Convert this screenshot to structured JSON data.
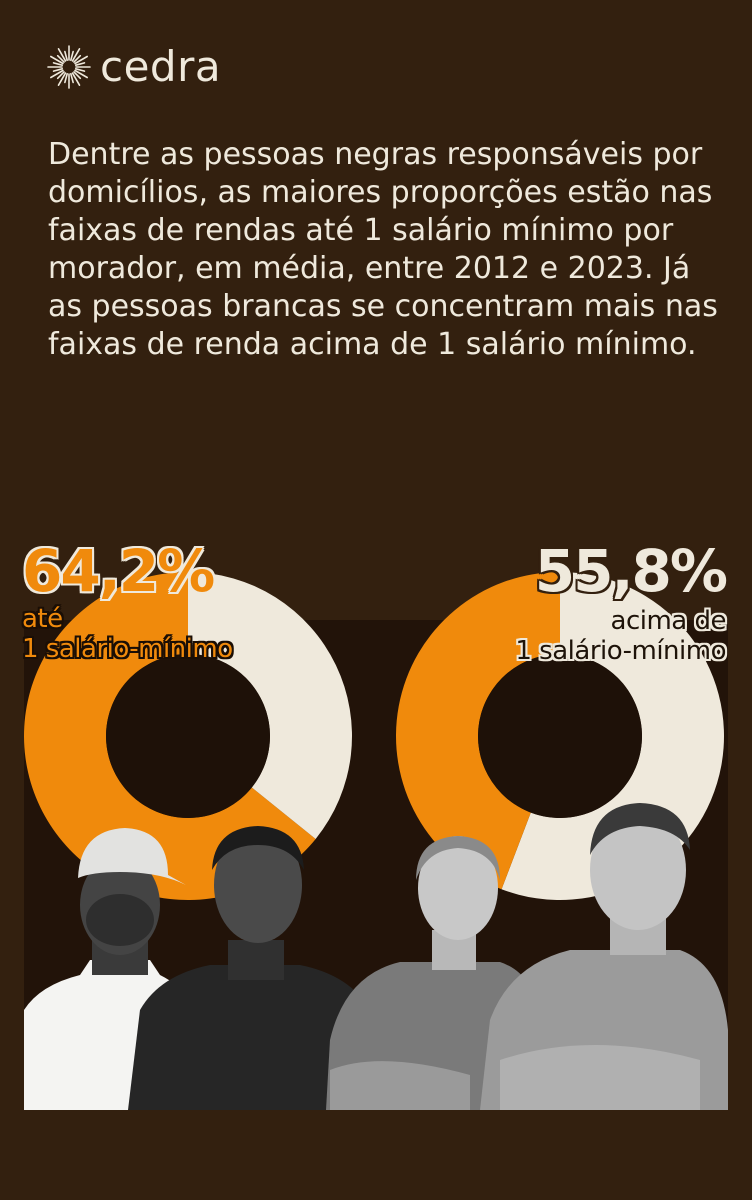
{
  "brand": {
    "name": "cedra",
    "logo_icon": "sunburst-icon"
  },
  "intro_text": "Dentre as pessoas negras responsáveis por domicílios, as maiores proporções estão nas faixas de rendas até 1 salário mínimo por morador, em média, entre 2012 e 2023. Já as pessoas brancas se concentram mais nas faixas de renda acima de 1 salário mínimo.",
  "colors": {
    "background": "#33200f",
    "orange": "#f08a0c",
    "cream": "#efe9dc",
    "panel": "#221309"
  },
  "chart_data": [
    {
      "type": "pie",
      "donut": true,
      "labels": [
        "até 1 salário-mínimo",
        "acima de 1 salário-mínimo"
      ],
      "values": [
        64.2,
        35.8
      ],
      "colors": [
        "#f08a0c",
        "#efe9dc"
      ],
      "highlight_label": "64,2%",
      "highlight_caption_line1": "até",
      "highlight_caption_line2": "1 salário-mínimo"
    },
    {
      "type": "pie",
      "donut": true,
      "labels": [
        "acima de 1 salário-mínimo",
        "até 1 salário-mínimo"
      ],
      "values": [
        55.8,
        44.2
      ],
      "colors": [
        "#efe9dc",
        "#f08a0c"
      ],
      "highlight_label": "55,8%",
      "highlight_caption_line1": "acima de",
      "highlight_caption_line2": "1 salário-mínimo"
    }
  ]
}
